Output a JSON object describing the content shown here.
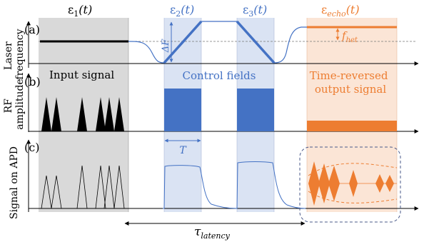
{
  "fields": {
    "e1": {
      "symbol": "ε",
      "sub": "1",
      "arg": "(t)"
    },
    "e2": {
      "symbol": "ε",
      "sub": "2",
      "arg": "(t)"
    },
    "e3": {
      "symbol": "ε",
      "sub": "3",
      "arg": "(t)"
    },
    "echo": {
      "symbol": "ε",
      "sub": "echo",
      "arg": "(t)"
    }
  },
  "panels": {
    "a": {
      "tag": "(a)",
      "ylabel_line1": "Laser",
      "ylabel_line2": "frequency"
    },
    "b": {
      "tag": "(b)",
      "ylabel_line1": "RF",
      "ylabel_line2": "amplitude"
    },
    "c": {
      "tag": "(c)",
      "ylabel": "Signal on APD"
    }
  },
  "annotations": {
    "delta_f": "ΔF",
    "f_het_main": "f",
    "f_het_sub": "het",
    "input_signal": "Input signal",
    "control_fields": "Control fields",
    "output_line1": "Time-reversed",
    "output_line2": "output signal",
    "period": "T",
    "latency_main": "τ",
    "latency_sub": "latency"
  },
  "colors": {
    "gray_region": "#d9d9d9",
    "blue_region": "#dae3f3",
    "orange_region": "#fbe5d6",
    "blue": "#4472c4",
    "orange": "#ed7d31",
    "black": "#000000",
    "dashed_box": "#4a5a8a"
  }
}
